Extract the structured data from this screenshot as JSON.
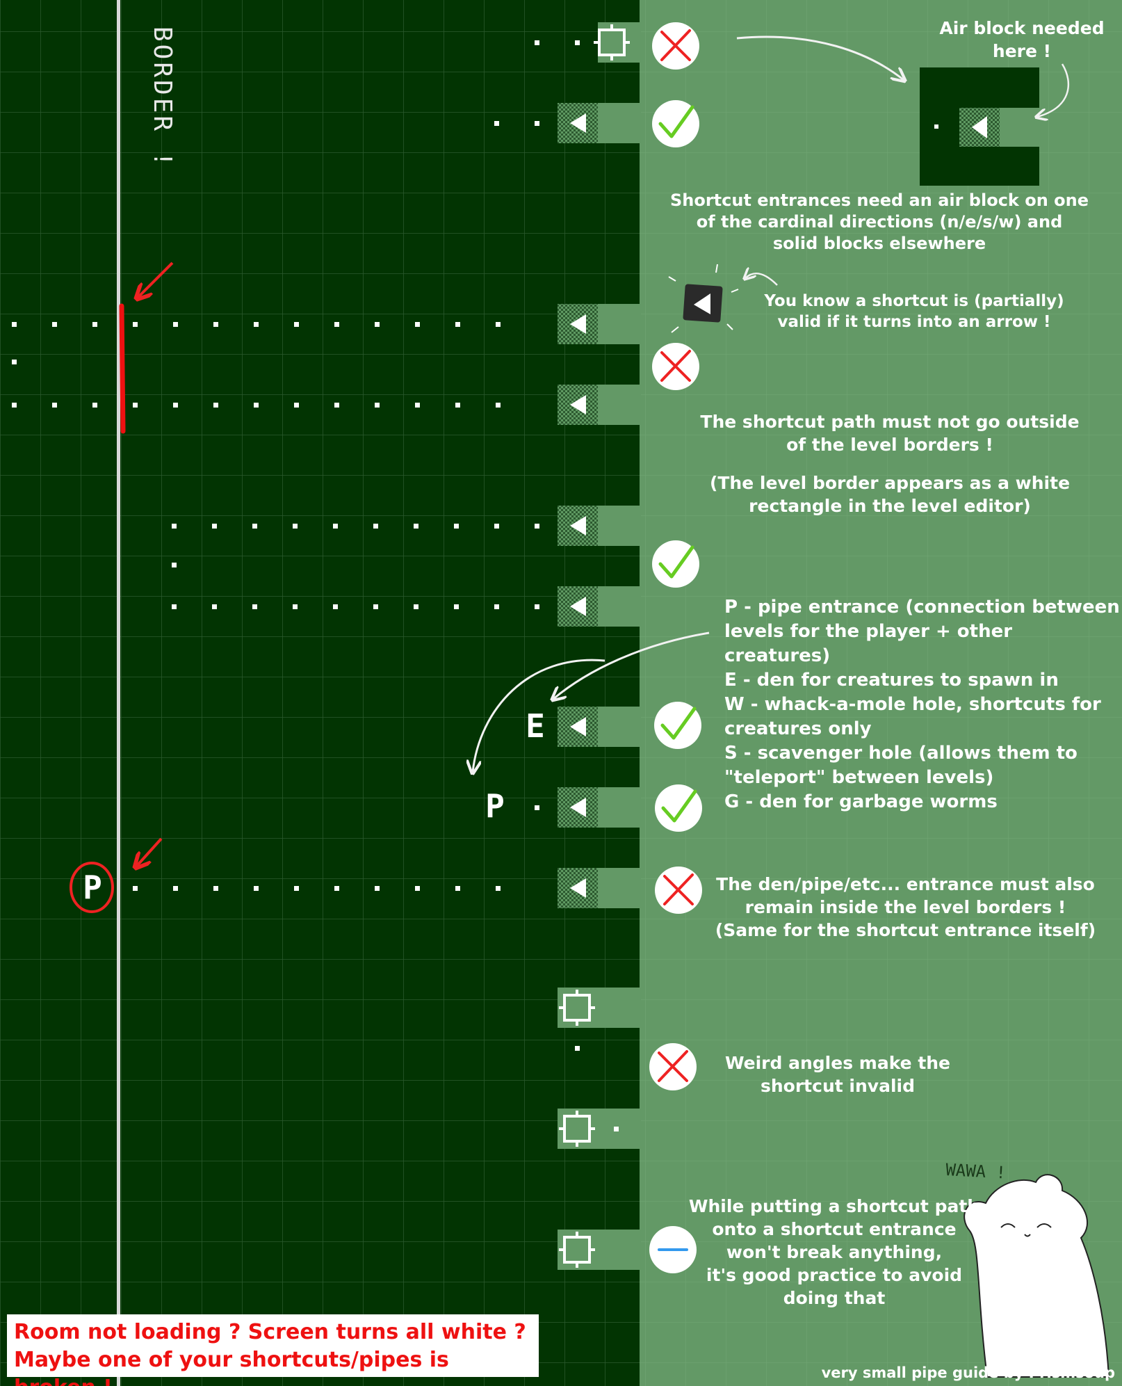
{
  "notes": {
    "air_block": "Air block needed\nhere !",
    "cardinal": "Shortcut entrances need an air block on one\nof the cardinal directions (n/e/s/w) and\nsolid blocks elsewhere",
    "arrow_valid": "You know a shortcut is (partially)\nvalid if it turns into an arrow !",
    "borders": "The shortcut path must not go outside\nof the level borders !",
    "border_rect": "(The level border appears as a white\nrectangle in the level editor)",
    "legend": "P - pipe entrance (connection between\nlevels for the player + other creatures)\nE - den for creatures to spawn in\nW - whack-a-mole hole, shortcuts for\ncreatures only\nS - scavenger hole (allows them to\n\"teleport\" between levels)\nG - den for garbage worms",
    "den_inside": "The den/pipe/etc... entrance must also\nremain inside the level borders !\n(Same for the shortcut entrance itself)",
    "weird_angles": "Weird angles make the\nshortcut invalid",
    "practice": "While putting a shortcut path\nonto a shortcut entrance\nwon't break anything,\nit's good practice to avoid\ndoing that"
  },
  "warning": {
    "line1": "Room not loading ? Screen turns all white ?",
    "line2": "Maybe one of your shortcuts/pipes is broken !"
  },
  "credit": "very small pipe guide by Prismsoup",
  "handwritten": {
    "border": "BORDER !",
    "wawa": "WAWA !"
  },
  "tile_letters": {
    "den": "E",
    "pipe_a": "P",
    "pipe_b": "P"
  },
  "verdicts": [
    "invalid",
    "valid",
    "invalid",
    "valid",
    "valid",
    "valid",
    "invalid",
    "invalid",
    "neutral"
  ],
  "colors": {
    "dark_panel": "#023402",
    "light_panel": "#639966",
    "grid_line": "#2f5f32",
    "check": "#66cc22",
    "cross": "#ee2222",
    "neutral": "#3399ee",
    "warning_text": "#ee1111"
  }
}
